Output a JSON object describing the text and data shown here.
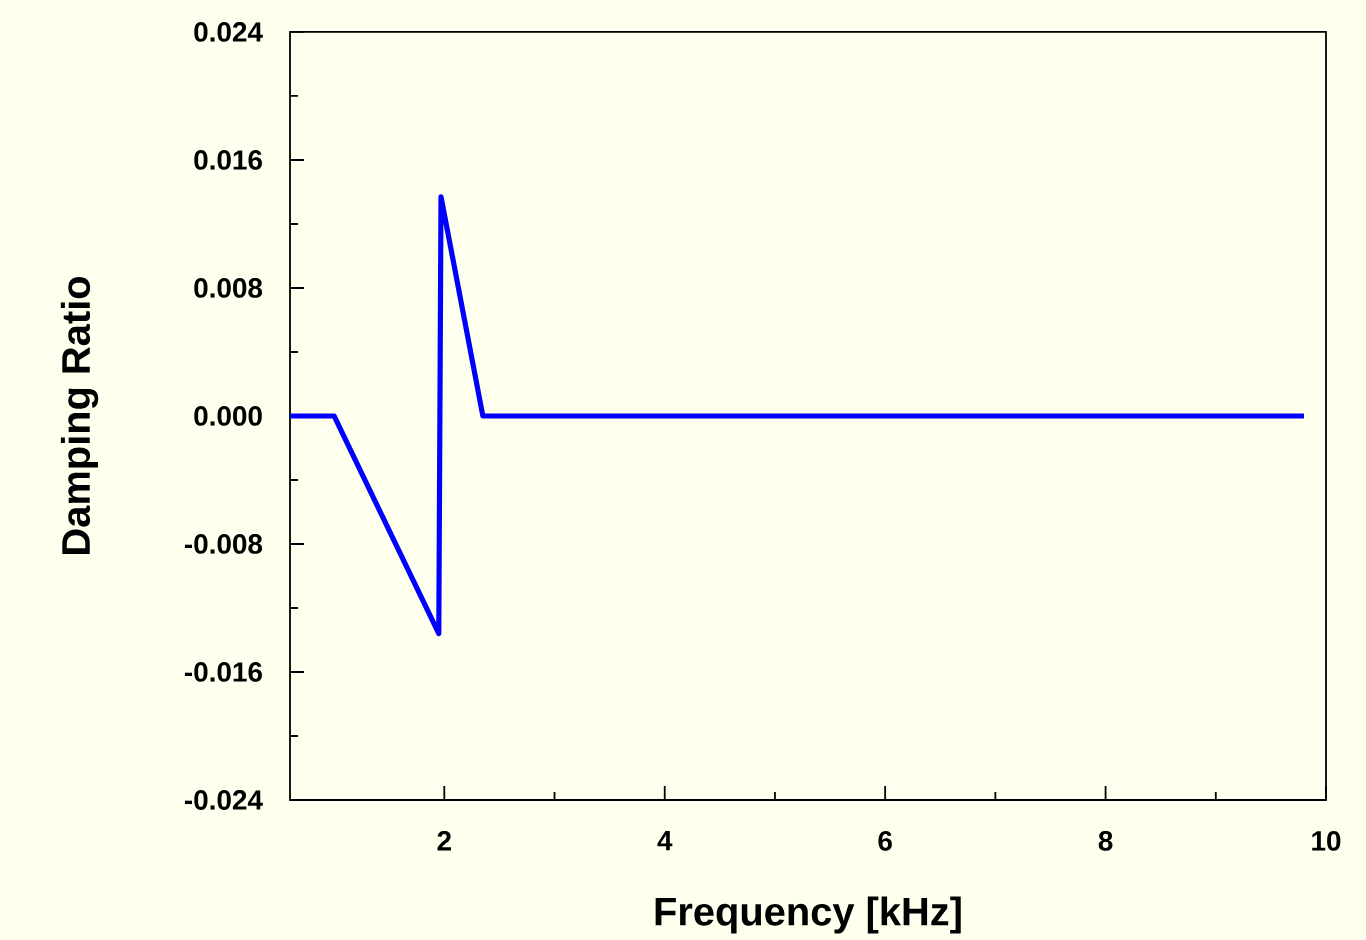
{
  "chart_data": {
    "type": "line",
    "xlabel": "Frequency [kHz]",
    "ylabel": "Damping Ratio",
    "x": [
      0.6,
      1.0,
      1.95,
      1.97,
      2.35,
      9.8
    ],
    "series": [
      {
        "color": "#0000ff",
        "values": [
          0,
          0,
          -0.0136,
          0.0137,
          0,
          0
        ]
      }
    ],
    "xlim": [
      0.6,
      10
    ],
    "ylim": [
      -0.024,
      0.024
    ],
    "xticks": [
      2,
      4,
      6,
      8,
      10
    ],
    "yticks": [
      {
        "value": -0.024,
        "label": "-0.024"
      },
      {
        "value": -0.016,
        "label": "-0.016"
      },
      {
        "value": -0.008,
        "label": "-0.008"
      },
      {
        "value": 0,
        "label": "0.000"
      },
      {
        "value": 0.008,
        "label": "0.008"
      },
      {
        "value": 0.016,
        "label": "0.016"
      },
      {
        "value": 0.024,
        "label": "0.024"
      }
    ],
    "grid": false,
    "marker": "none",
    "line_style": "solid"
  }
}
